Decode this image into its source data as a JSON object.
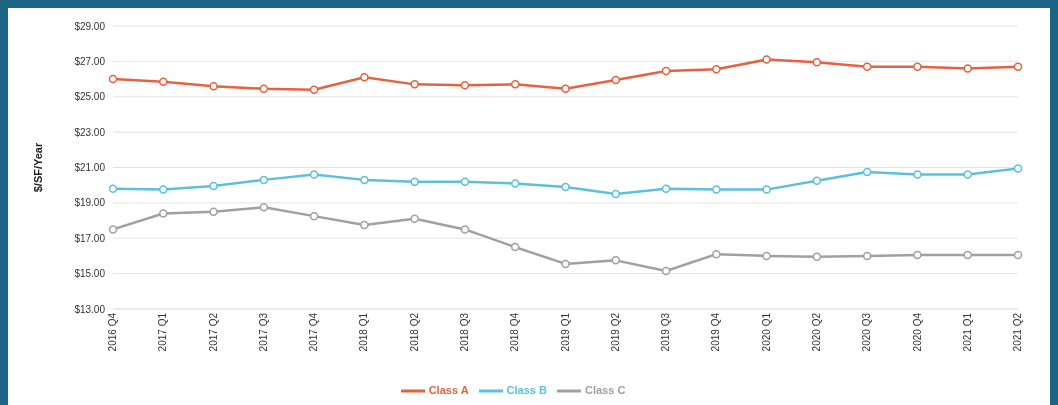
{
  "chart_data": {
    "type": "line",
    "ylabel": "$/SF/Year",
    "categories": [
      "2016 Q4",
      "2017 Q1",
      "2017 Q2",
      "2017 Q3",
      "2017 Q4",
      "2018 Q1",
      "2018 Q2",
      "2018 Q3",
      "2018 Q4",
      "2019 Q1",
      "2019 Q2",
      "2019 Q3",
      "2019 Q4",
      "2020 Q1",
      "2020 Q2",
      "2020 Q3",
      "2020 Q4",
      "2021 Q1",
      "2021 Q2"
    ],
    "series": [
      {
        "name": "Class A",
        "color": "#e8613f",
        "values": [
          26.0,
          25.85,
          25.6,
          25.45,
          25.4,
          26.1,
          25.7,
          25.65,
          25.7,
          25.45,
          25.95,
          26.45,
          26.55,
          27.1,
          26.95,
          26.7,
          26.7,
          26.6,
          26.7
        ]
      },
      {
        "name": "Class B",
        "color": "#5bc0de",
        "values": [
          19.8,
          19.75,
          19.95,
          20.3,
          20.6,
          20.3,
          20.2,
          20.2,
          20.1,
          19.9,
          19.5,
          19.8,
          19.75,
          19.75,
          20.25,
          20.75,
          20.6,
          20.6,
          20.95
        ]
      },
      {
        "name": "Class C",
        "color": "#a0a0a0",
        "values": [
          17.5,
          18.4,
          18.5,
          18.75,
          18.25,
          17.75,
          18.1,
          17.5,
          16.5,
          15.55,
          15.75,
          15.15,
          16.1,
          16.0,
          15.95,
          16.0,
          16.05,
          16.05,
          16.05
        ]
      }
    ],
    "ylim": [
      13,
      29
    ],
    "yticks": [
      {
        "value": 13,
        "label": "$13.00"
      },
      {
        "value": 15,
        "label": "$15.00"
      },
      {
        "value": 17,
        "label": "$17.00"
      },
      {
        "value": 19,
        "label": "$19.00"
      },
      {
        "value": 21,
        "label": "$21.00"
      },
      {
        "value": 23,
        "label": "$23.00"
      },
      {
        "value": 25,
        "label": "$25.00"
      },
      {
        "value": 27,
        "label": "$27.00"
      },
      {
        "value": 29,
        "label": "$29.00"
      }
    ],
    "grid": "y",
    "legend": "bottom",
    "marker": "circle",
    "line_style": "solid"
  }
}
